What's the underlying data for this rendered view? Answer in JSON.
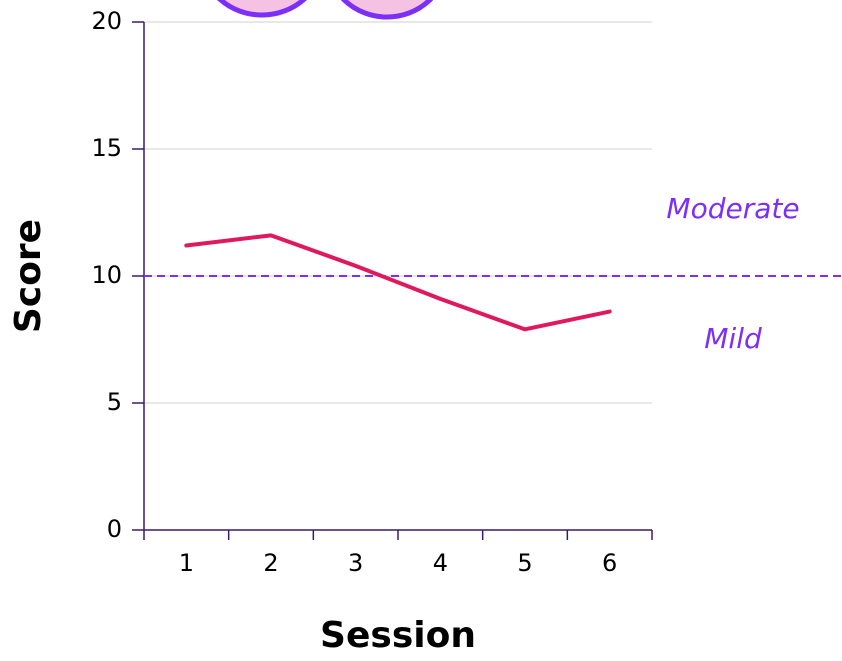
{
  "chart_data": {
    "type": "line",
    "xlabel": "Session",
    "ylabel": "Score",
    "categories": [
      "1",
      "2",
      "3",
      "4",
      "5",
      "6"
    ],
    "values": [
      11.2,
      11.6,
      10.4,
      9.1,
      7.9,
      8.6
    ],
    "color": "#e0185e",
    "ylim": [
      0,
      20
    ],
    "yticks": [
      0,
      5,
      10,
      15,
      20
    ],
    "grid": true,
    "threshold": {
      "value": 10,
      "color": "#7b2ff7",
      "above_label": "Moderate",
      "below_label": "Mild"
    }
  }
}
